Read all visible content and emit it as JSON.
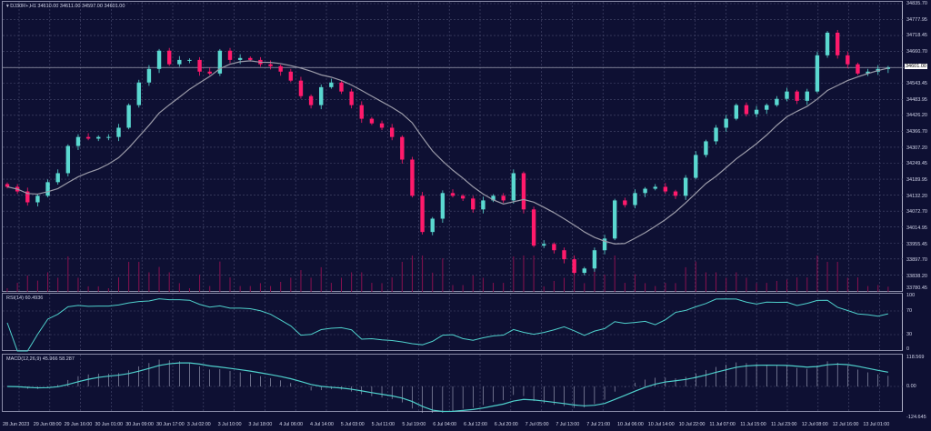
{
  "header": {
    "symbol": "DJ30R+,H1",
    "open": "34610.00",
    "high": "34611.00",
    "low": "34597.00",
    "close": "34601.00"
  },
  "rsi": {
    "label": "RSI(14) 60.4936",
    "levels": [
      "100",
      "70",
      "30",
      "0"
    ]
  },
  "macd": {
    "label": "MACD(12,26,9) 45.966 58.287",
    "levels": [
      "118.569",
      "0.00",
      "-124.645"
    ]
  },
  "price_axis": [
    "34835.70",
    "34777.95",
    "34718.45",
    "34660.70",
    "34543.45",
    "34483.95",
    "34426.20",
    "34366.70",
    "34307.20",
    "34249.45",
    "34189.95",
    "34132.20",
    "34072.70",
    "34014.95",
    "33955.45",
    "33897.70",
    "33838.20",
    "33780.45"
  ],
  "current_price": "34601.00",
  "time_axis": [
    "28 Jun 2023",
    "29 Jun 08:00",
    "29 Jun 16:00",
    "30 Jun 01:00",
    "30 Jun 09:00",
    "30 Jun 17:00",
    "3 Jul 02:00",
    "3 Jul 10:00",
    "3 Jul 18:00",
    "4 Jul 06:00",
    "4 Jul 14:00",
    "5 Jul 03:00",
    "5 Jul 11:00",
    "5 Jul 19:00",
    "6 Jul 04:00",
    "6 Jul 12:00",
    "6 Jul 20:00",
    "7 Jul 05:00",
    "7 Jul 13:00",
    "7 Jul 21:00",
    "10 Jul 06:00",
    "10 Jul 14:00",
    "10 Jul 22:00",
    "11 Jul 07:00",
    "11 Jul 15:00",
    "11 Jul 23:00",
    "12 Jul 08:00",
    "12 Jul 16:00",
    "13 Jul 01:00"
  ],
  "colors": {
    "background": "#0e1033",
    "bull": "#5ad8d0",
    "bear": "#ff1a6b",
    "ma": "#9a9aa8",
    "indicator": "#4fd0cc",
    "grid": "#4a4c70"
  },
  "chart_data": {
    "type": "candlestick",
    "ylim": [
      33780.45,
      34835.7
    ],
    "closes": [
      34163,
      34146,
      34106,
      34130,
      34180,
      34213,
      34313,
      34346,
      34340,
      34346,
      34346,
      34380,
      34463,
      34546,
      34596,
      34663,
      34613,
      34629,
      34629,
      34586,
      34579,
      34663,
      34629,
      34636,
      34629,
      34613,
      34606,
      34586,
      34553,
      34496,
      34463,
      34529,
      34546,
      34513,
      34463,
      34413,
      34396,
      34380,
      34346,
      34263,
      34130,
      33997,
      34046,
      34140,
      34130,
      34120,
      34080,
      34113,
      34130,
      34113,
      34213,
      34080,
      33947,
      33953,
      33930,
      33897,
      33847,
      33863,
      33930,
      33973,
      34113,
      34096,
      34140,
      34156,
      34163,
      34146,
      34130,
      34196,
      34280,
      34330,
      34380,
      34413,
      34463,
      34430,
      34446,
      34463,
      34486,
      34513,
      34479,
      34513,
      34646,
      34729,
      34646,
      34613,
      34579,
      34586,
      34596,
      34601
    ]
  }
}
